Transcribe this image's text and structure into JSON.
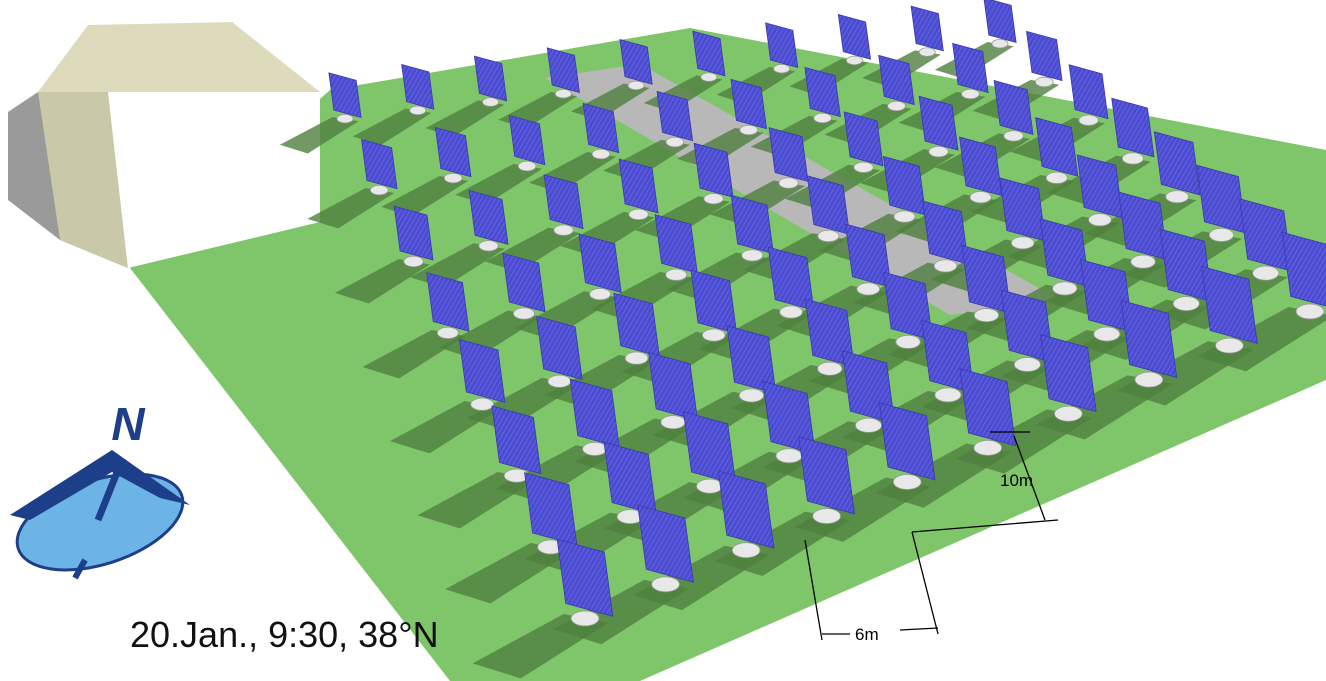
{
  "compass": {
    "label": "N"
  },
  "dimensions": {
    "row_spacing": "10m",
    "column_spacing": "6m"
  },
  "caption": "20.Jan., 9:30, 38°N"
}
